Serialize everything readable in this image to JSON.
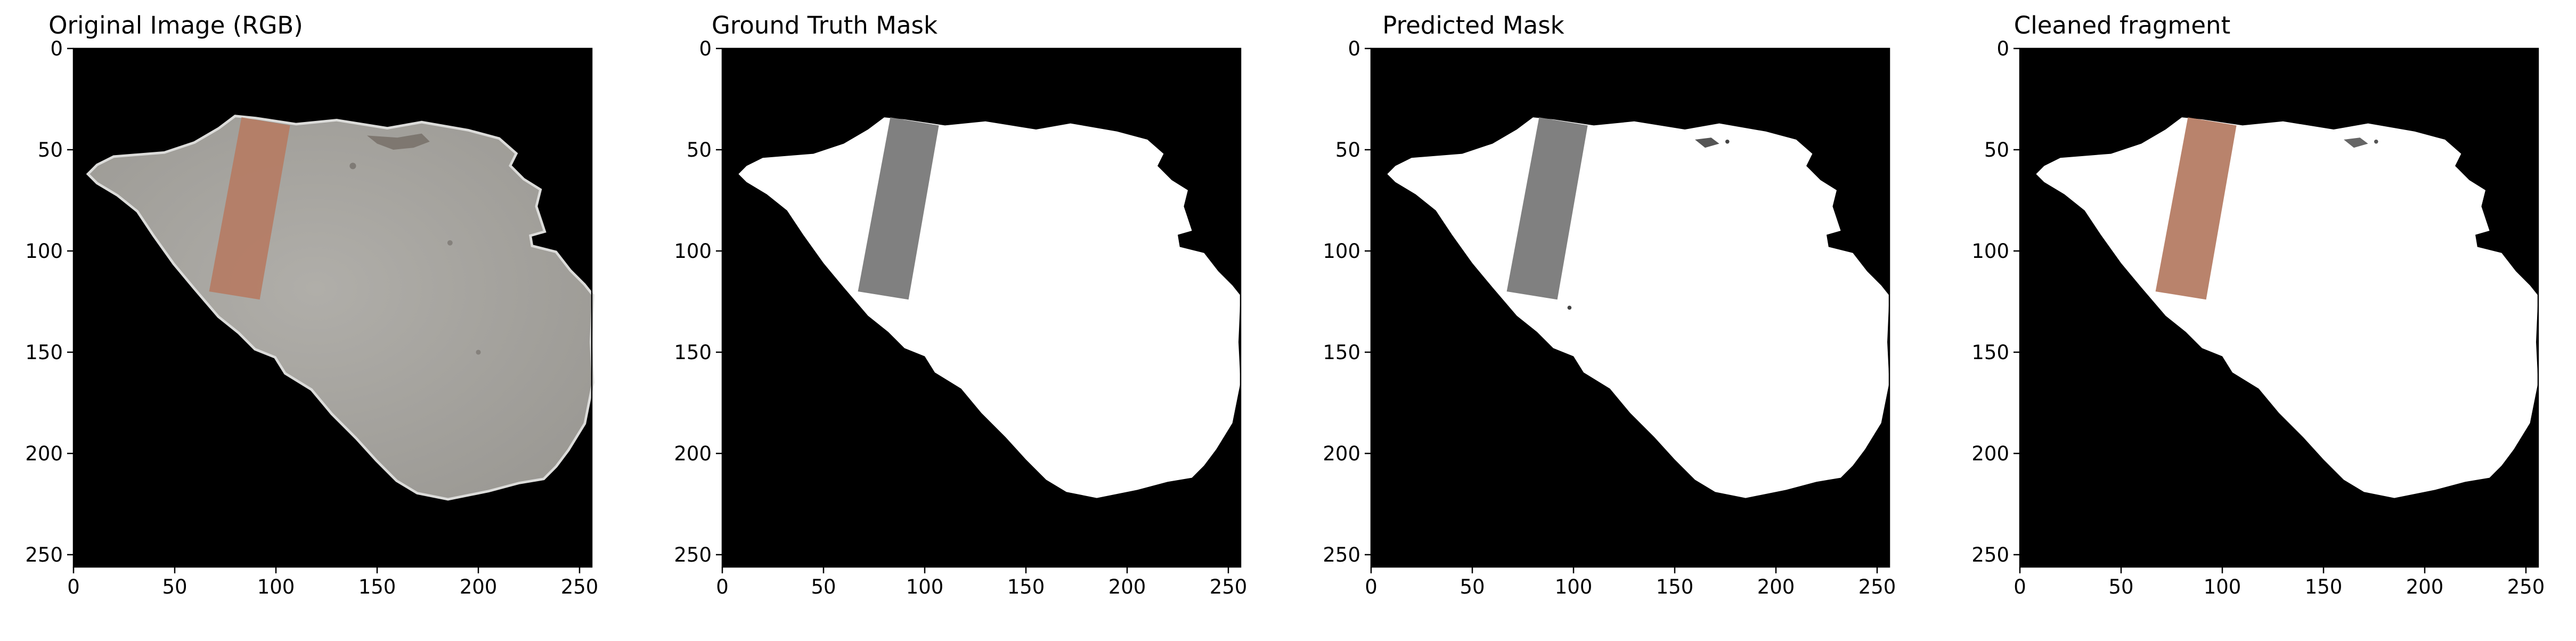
{
  "figure": {
    "panels": [
      {
        "id": "original",
        "title": "Original Image (RGB)",
        "x_ticks": [
          "0",
          "50",
          "100",
          "150",
          "200",
          "250"
        ],
        "y_ticks": [
          "0",
          "50",
          "100",
          "150",
          "200",
          "250"
        ]
      },
      {
        "id": "ground-truth",
        "title": "Ground Truth Mask",
        "x_ticks": [
          "0",
          "50",
          "100",
          "150",
          "200",
          "250"
        ],
        "y_ticks": [
          "0",
          "50",
          "100",
          "150",
          "200",
          "250"
        ]
      },
      {
        "id": "predicted",
        "title": "Predicted Mask",
        "x_ticks": [
          "0",
          "50",
          "100",
          "150",
          "200",
          "250"
        ],
        "y_ticks": [
          "0",
          "50",
          "100",
          "150",
          "200",
          "250"
        ]
      },
      {
        "id": "cleaned",
        "title": "Cleaned fragment",
        "x_ticks": [
          "0",
          "50",
          "100",
          "150",
          "200",
          "250"
        ],
        "y_ticks": [
          "0",
          "50",
          "100",
          "150",
          "200",
          "250"
        ]
      }
    ],
    "colors": {
      "background": "#000000",
      "fragment_rgb": "#a4a29e",
      "fragment_border": "#dcdcda",
      "tape": "#b57c64",
      "mask_white": "#ffffff",
      "mask_gray": "#808080"
    }
  }
}
